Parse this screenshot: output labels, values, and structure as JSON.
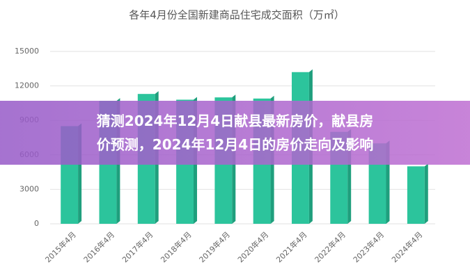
{
  "chart_data": {
    "type": "bar",
    "title": "各年4月份全国新建商品住宅成交面积（万㎡）",
    "categories": [
      "2015年4月",
      "2016年4月",
      "2017年4月",
      "2018年4月",
      "2019年4月",
      "2020年4月",
      "2021年4月",
      "2022年4月",
      "2023年4月",
      "2024年4月"
    ],
    "values": [
      8500,
      10700,
      11300,
      10800,
      11000,
      10900,
      13200,
      8000,
      7000,
      5000
    ],
    "color": "#2cc49c",
    "ylim": [
      0,
      15000
    ],
    "yticks": [
      0,
      3000,
      6000,
      9000,
      12000,
      15000
    ],
    "grid": true
  },
  "overlay": {
    "lines": [
      "猜测2024年12月4日献县最新房价，献县房",
      "价预测，2024年12月4日的房价走向及影响"
    ]
  }
}
